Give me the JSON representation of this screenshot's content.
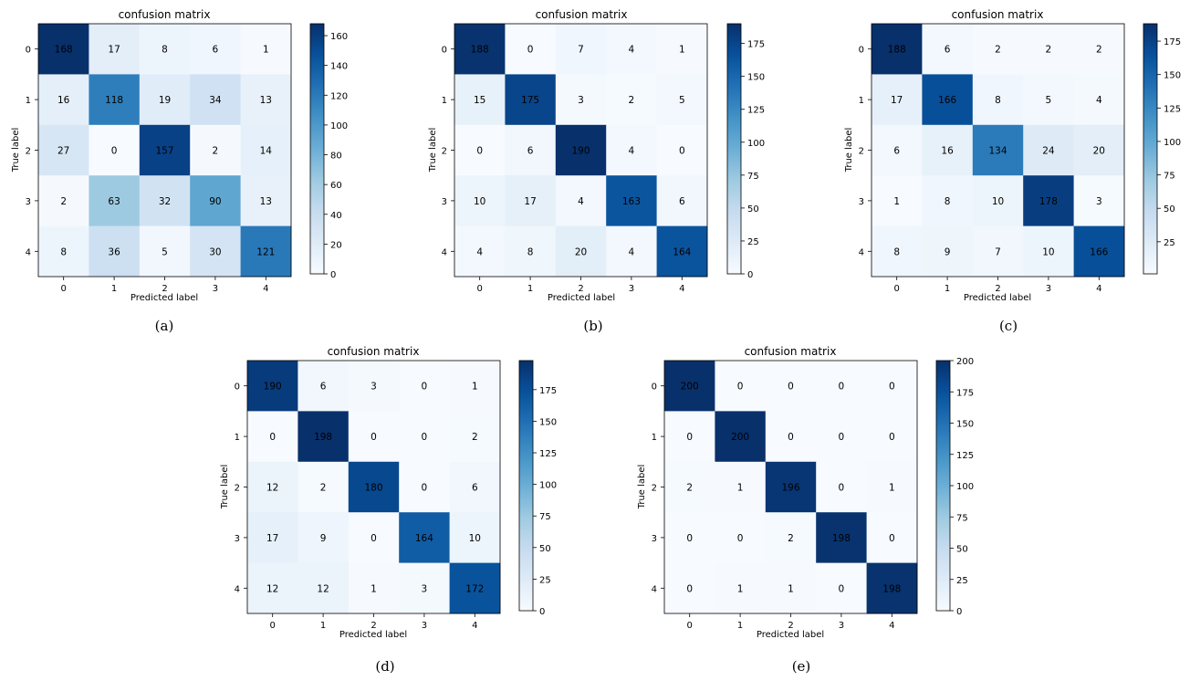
{
  "chart_data": [
    {
      "type": "heatmap",
      "panel_label": "(a)",
      "title": "confusion matrix",
      "xlabel": "Predicted label",
      "ylabel": "True label",
      "x_ticks": [
        "0",
        "1",
        "2",
        "3",
        "4"
      ],
      "y_ticks": [
        "0",
        "1",
        "2",
        "3",
        "4"
      ],
      "matrix": [
        [
          168,
          17,
          8,
          6,
          1
        ],
        [
          16,
          118,
          19,
          34,
          13
        ],
        [
          27,
          0,
          157,
          2,
          14
        ],
        [
          2,
          63,
          32,
          90,
          13
        ],
        [
          8,
          36,
          5,
          30,
          121
        ]
      ],
      "vmin": 0,
      "vmax": 168,
      "colorbar_ticks": [
        0,
        20,
        40,
        60,
        80,
        100,
        120,
        140,
        160
      ]
    },
    {
      "type": "heatmap",
      "panel_label": "(b)",
      "title": "confusion matrix",
      "xlabel": "Predicted label",
      "ylabel": "True label",
      "x_ticks": [
        "0",
        "1",
        "2",
        "3",
        "4"
      ],
      "y_ticks": [
        "0",
        "1",
        "2",
        "3",
        "4"
      ],
      "matrix": [
        [
          188,
          0,
          7,
          4,
          1
        ],
        [
          15,
          175,
          3,
          2,
          5
        ],
        [
          0,
          6,
          190,
          4,
          0
        ],
        [
          10,
          17,
          4,
          163,
          6
        ],
        [
          4,
          8,
          20,
          4,
          164
        ]
      ],
      "vmin": 0,
      "vmax": 190,
      "colorbar_ticks": [
        0,
        25,
        50,
        75,
        100,
        125,
        150,
        175
      ]
    },
    {
      "type": "heatmap",
      "panel_label": "(c)",
      "title": "confusion matrix",
      "xlabel": "Predicted label",
      "ylabel": "True label",
      "x_ticks": [
        "0",
        "1",
        "2",
        "3",
        "4"
      ],
      "y_ticks": [
        "0",
        "1",
        "2",
        "3",
        "4"
      ],
      "matrix": [
        [
          188,
          6,
          2,
          2,
          2
        ],
        [
          17,
          166,
          8,
          5,
          4
        ],
        [
          6,
          16,
          134,
          24,
          20
        ],
        [
          1,
          8,
          10,
          178,
          3
        ],
        [
          8,
          9,
          7,
          10,
          166
        ]
      ],
      "vmin": 1,
      "vmax": 188,
      "colorbar_ticks": [
        25,
        50,
        75,
        100,
        125,
        150,
        175
      ]
    },
    {
      "type": "heatmap",
      "panel_label": "(d)",
      "title": "confusion matrix",
      "xlabel": "Predicted label",
      "ylabel": "True label",
      "x_ticks": [
        "0",
        "1",
        "2",
        "3",
        "4"
      ],
      "y_ticks": [
        "0",
        "1",
        "2",
        "3",
        "4"
      ],
      "matrix": [
        [
          190,
          6,
          3,
          0,
          1
        ],
        [
          0,
          198,
          0,
          0,
          2
        ],
        [
          12,
          2,
          180,
          0,
          6
        ],
        [
          17,
          9,
          0,
          164,
          10
        ],
        [
          12,
          12,
          1,
          3,
          172
        ]
      ],
      "vmin": 0,
      "vmax": 198,
      "colorbar_ticks": [
        0,
        25,
        50,
        75,
        100,
        125,
        150,
        175
      ]
    },
    {
      "type": "heatmap",
      "panel_label": "(e)",
      "title": "confusion matrix",
      "xlabel": "Predicted label",
      "ylabel": "True label",
      "x_ticks": [
        "0",
        "1",
        "2",
        "3",
        "4"
      ],
      "y_ticks": [
        "0",
        "1",
        "2",
        "3",
        "4"
      ],
      "matrix": [
        [
          200,
          0,
          0,
          0,
          0
        ],
        [
          0,
          200,
          0,
          0,
          0
        ],
        [
          2,
          1,
          196,
          0,
          1
        ],
        [
          0,
          0,
          2,
          198,
          0
        ],
        [
          0,
          1,
          1,
          0,
          198
        ]
      ],
      "vmin": 0,
      "vmax": 200,
      "colorbar_ticks": [
        0,
        25,
        50,
        75,
        100,
        125,
        150,
        175,
        200
      ]
    }
  ]
}
